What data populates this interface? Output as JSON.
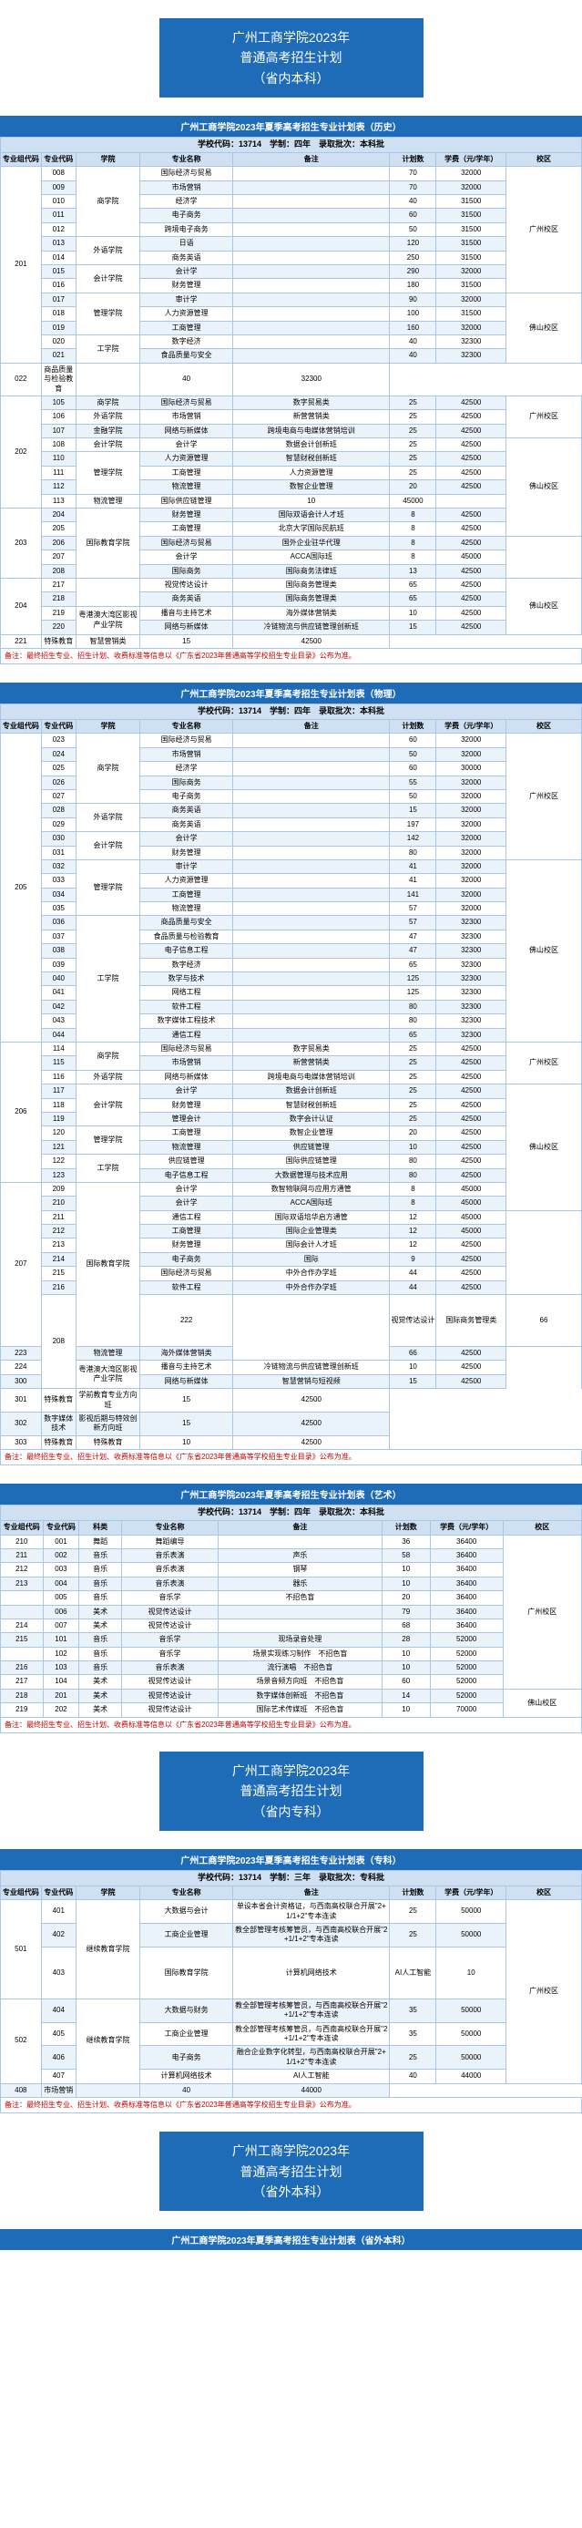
{
  "colors": {
    "banner_bg": "#1e6bb8",
    "banner_fg": "#ffffff",
    "header_bg": "#cfe0f2",
    "border": "#aac6e6",
    "row_odd": "#ffffff",
    "row_even": "#eaf2fa",
    "footnote_color": "#c00000"
  },
  "banner1": {
    "line1": "广州工商学院2023年",
    "line2": "普通高考招生计划",
    "line3": "（省内本科）"
  },
  "banner2": {
    "line1": "广州工商学院2023年",
    "line2": "普通高考招生计划",
    "line3": "（省内专科）"
  },
  "banner3": {
    "line1": "广州工商学院2023年",
    "line2": "普通高考招生计划",
    "line3": "（省外本科）"
  },
  "columns": {
    "group_code": "专业组代码",
    "major_code": "专业代码",
    "school": "学院",
    "major_name": "专业名称",
    "note": "备注",
    "plan": "计划数",
    "fee": "学费（元/学年）",
    "campus": "校区",
    "subject": "科类"
  },
  "table1": {
    "caption": "广州工商学院2023年夏季高考招生专业计划表（历史）",
    "subheader": "学校代码：13714　学制：四年　录取批次：本科批",
    "rows": [
      {
        "g": "201",
        "gspan": 14,
        "c": "008",
        "sch": "商学院",
        "sspan": 5,
        "name": "国际经济与贸易",
        "note": "",
        "plan": "70",
        "fee": "32000",
        "camp": "广州校区",
        "cspan": 9
      },
      {
        "c": "009",
        "name": "市场营销",
        "note": "",
        "plan": "70",
        "fee": "32000"
      },
      {
        "c": "010",
        "name": "经济学",
        "note": "",
        "plan": "40",
        "fee": "31500"
      },
      {
        "c": "011",
        "name": "电子商务",
        "note": "",
        "plan": "60",
        "fee": "31500"
      },
      {
        "c": "012",
        "name": "跨境电子商务",
        "note": "",
        "plan": "50",
        "fee": "31500"
      },
      {
        "c": "013",
        "sch": "外语学院",
        "sspan": 2,
        "name": "日语",
        "note": "",
        "plan": "120",
        "fee": "31500"
      },
      {
        "c": "014",
        "name": "商务英语",
        "note": "",
        "plan": "250",
        "fee": "31500"
      },
      {
        "c": "015",
        "sch": "会计学院",
        "sspan": 2,
        "name": "会计学",
        "note": "",
        "plan": "290",
        "fee": "32000"
      },
      {
        "c": "016",
        "name": "财务管理",
        "note": "",
        "plan": "180",
        "fee": "31500"
      },
      {
        "c": "017",
        "sch": "管理学院",
        "sspan": 3,
        "name": "审计学",
        "note": "",
        "plan": "90",
        "fee": "32000",
        "camp": "佛山校区",
        "cspan": 5
      },
      {
        "c": "018",
        "name": "人力资源管理",
        "note": "",
        "plan": "100",
        "fee": "31500"
      },
      {
        "c": "019",
        "name": "工商管理",
        "note": "",
        "plan": "160",
        "fee": "32000"
      },
      {
        "c": "020",
        "sch": "工学院",
        "sspan": 2,
        "name": "数字经济",
        "note": "",
        "plan": "40",
        "fee": "32300"
      },
      {
        "c": "021",
        "name": "食品质量与安全",
        "note": "",
        "plan": "40",
        "fee": "32300"
      },
      {
        "c": "022",
        "name": "商品质量与检验教育",
        "note": "",
        "plan": "40",
        "fee": "32300"
      },
      {
        "g": "202",
        "gspan": 8,
        "c": "105",
        "sch": "商学院",
        "sspan": 1,
        "name": "国际经济与贸易",
        "note": "数字贸易类",
        "plan": "25",
        "fee": "42500",
        "camp": "广州校区",
        "cspan": 3
      },
      {
        "c": "106",
        "sch": "外语学院",
        "sspan": 1,
        "name": "市场营销",
        "note": "新营营销类",
        "plan": "25",
        "fee": "42500"
      },
      {
        "c": "107",
        "sch": "金融学院",
        "sspan": 1,
        "name": "网络与新媒体",
        "note": "跨境电商与电媒体营销培训",
        "plan": "25",
        "fee": "42500"
      },
      {
        "c": "108",
        "sch": "会计学院",
        "sspan": 1,
        "name": "会计学",
        "note": "数据会计创新班",
        "plan": "25",
        "fee": "42500",
        "camp": "佛山校区",
        "cspan": 7
      },
      {
        "c": "110",
        "sch": "管理学院",
        "sspan": 3,
        "name": "人力资源管理",
        "note": "智慧财税创新班",
        "plan": "25",
        "fee": "42500"
      },
      {
        "c": "111",
        "name": "工商管理",
        "note": "人力资源管理",
        "plan": "25",
        "fee": "42500"
      },
      {
        "c": "112",
        "name": "物流管理",
        "note": "数智企业管理",
        "plan": "20",
        "fee": "42500"
      },
      {
        "c": "113",
        "name": "物流管理",
        "note": "国际供应链管理",
        "plan": "10",
        "fee": "45000"
      },
      {
        "g": "203",
        "gspan": 5,
        "c": "204",
        "sch": "国际教育学院",
        "sspan": 5,
        "name": "财务管理",
        "note": "国际双语会计人才班",
        "plan": "8",
        "fee": "42500",
        "camp": "广州校区",
        "cspan": 5
      },
      {
        "c": "205",
        "name": "工商管理",
        "note": "北京大学国际民航班",
        "plan": "8",
        "fee": "42500"
      },
      {
        "c": "206",
        "name": "国际经济与贸易",
        "note": "国外企业驻华代理",
        "plan": "8",
        "fee": "42500"
      },
      {
        "c": "207",
        "name": "会计学",
        "note": "ACCA国际班",
        "plan": "8",
        "fee": "45000"
      },
      {
        "c": "208",
        "name": "国际商务",
        "note": "国际商务法律班",
        "plan": "13",
        "fee": "42500"
      },
      {
        "g": "204",
        "gspan": 4,
        "c": "217",
        "sch": "",
        "sspan": 2,
        "name": "视觉传达设计",
        "note": "国际商务管理类",
        "plan": "65",
        "fee": "42500",
        "camp": "佛山校区",
        "cspan": 4
      },
      {
        "c": "218",
        "name": "商务英语",
        "note": "国际商务管理类",
        "plan": "65",
        "fee": "42500"
      },
      {
        "c": "219",
        "sch": "粤港澳大湾区影视产业学院",
        "sspan": 2,
        "name": "播音与主持艺术",
        "note": "海外媒体营销类",
        "plan": "10",
        "fee": "42500"
      },
      {
        "c": "220",
        "name": "网络与新媒体",
        "note": "冷链物流与供应链管理创新班",
        "plan": "15",
        "fee": "42500"
      },
      {
        "c": "221",
        "name": "特殊教育",
        "note": "智慧营销类",
        "plan": "15",
        "fee": "42500"
      }
    ],
    "footnote": "备注：最终招生专业、招生计划、收费标准等信息以《广东省2023年普通高等学校招生专业目录》公布为准。"
  },
  "table2": {
    "caption": "广州工商学院2023年夏季高考招生专业计划表（物理）",
    "subheader": "学校代码：13714　学制：四年　录取批次：本科批",
    "rows": [
      {
        "g": "205",
        "gspan": 22,
        "c": "023",
        "sch": "商学院",
        "sspan": 5,
        "name": "国际经济与贸易",
        "note": "",
        "plan": "60",
        "fee": "32000",
        "camp": "广州校区",
        "cspan": 9
      },
      {
        "c": "024",
        "name": "市场营销",
        "note": "",
        "plan": "50",
        "fee": "32000"
      },
      {
        "c": "025",
        "name": "经济学",
        "note": "",
        "plan": "60",
        "fee": "30000"
      },
      {
        "c": "026",
        "name": "国际商务",
        "note": "",
        "plan": "55",
        "fee": "32000"
      },
      {
        "c": "027",
        "name": "电子商务",
        "note": "",
        "plan": "50",
        "fee": "32000"
      },
      {
        "c": "028",
        "sch": "外语学院",
        "sspan": 2,
        "name": "商务英语",
        "note": "",
        "plan": "15",
        "fee": "32000"
      },
      {
        "c": "029",
        "name": "商务英语",
        "note": "",
        "plan": "197",
        "fee": "32000"
      },
      {
        "c": "030",
        "sch": "会计学院",
        "sspan": 2,
        "name": "会计学",
        "note": "",
        "plan": "142",
        "fee": "32000"
      },
      {
        "c": "031",
        "name": "财务管理",
        "note": "",
        "plan": "80",
        "fee": "32000"
      },
      {
        "c": "032",
        "sch": "管理学院",
        "sspan": 4,
        "name": "审计学",
        "note": "",
        "plan": "41",
        "fee": "32000",
        "camp": "佛山校区",
        "cspan": 13
      },
      {
        "c": "033",
        "name": "人力资源管理",
        "note": "",
        "plan": "41",
        "fee": "32000"
      },
      {
        "c": "034",
        "name": "工商管理",
        "note": "",
        "plan": "141",
        "fee": "32000"
      },
      {
        "c": "035",
        "name": "物流管理",
        "note": "",
        "plan": "57",
        "fee": "32000"
      },
      {
        "c": "036",
        "sch": "工学院",
        "sspan": 9,
        "name": "商品质量与安全",
        "note": "",
        "plan": "57",
        "fee": "32300"
      },
      {
        "c": "037",
        "name": "食品质量与检验教育",
        "note": "",
        "plan": "47",
        "fee": "32300"
      },
      {
        "c": "038",
        "name": "电子信息工程",
        "note": "",
        "plan": "47",
        "fee": "32300"
      },
      {
        "c": "039",
        "name": "数字经济",
        "note": "",
        "plan": "65",
        "fee": "32300"
      },
      {
        "c": "040",
        "name": "数学与技术",
        "note": "",
        "plan": "125",
        "fee": "32300"
      },
      {
        "c": "041",
        "name": "网络工程",
        "note": "",
        "plan": "125",
        "fee": "32300"
      },
      {
        "c": "042",
        "name": "软件工程",
        "note": "",
        "plan": "80",
        "fee": "32300"
      },
      {
        "c": "043",
        "name": "数字媒体工程技术",
        "note": "",
        "plan": "80",
        "fee": "32300"
      },
      {
        "c": "044",
        "name": "通信工程",
        "note": "",
        "plan": "65",
        "fee": "32300"
      },
      {
        "g": "206",
        "gspan": 10,
        "c": "114",
        "sch": "商学院",
        "sspan": 2,
        "name": "国际经济与贸易",
        "note": "数字贸易类",
        "plan": "25",
        "fee": "42500",
        "camp": "广州校区",
        "cspan": 3
      },
      {
        "c": "115",
        "name": "市场营销",
        "note": "新营营销类",
        "plan": "25",
        "fee": "42500"
      },
      {
        "c": "116",
        "sch": "外语学院",
        "sspan": 1,
        "name": "网络与新媒体",
        "note": "跨境电商与电媒体营销培训",
        "plan": "25",
        "fee": "42500"
      },
      {
        "c": "117",
        "sch": "会计学院",
        "sspan": 3,
        "name": "会计学",
        "note": "数据会计创新班",
        "plan": "25",
        "fee": "42500",
        "camp": "佛山校区",
        "cspan": 9
      },
      {
        "c": "118",
        "name": "财务管理",
        "note": "智慧财税创新班",
        "plan": "25",
        "fee": "42500"
      },
      {
        "c": "119",
        "name": "管理会计",
        "note": "数字会计认证",
        "plan": "25",
        "fee": "42500"
      },
      {
        "c": "120",
        "sch": "管理学院",
        "sspan": 2,
        "name": "工商管理",
        "note": "数智企业管理",
        "plan": "20",
        "fee": "42500"
      },
      {
        "c": "121",
        "name": "物流管理",
        "note": "供应链管理",
        "plan": "10",
        "fee": "42500"
      },
      {
        "c": "122",
        "sch": "工学院",
        "sspan": 2,
        "name": "供应链管理",
        "note": "国际供应链管理",
        "plan": "80",
        "fee": "42500"
      },
      {
        "c": "123",
        "name": "电子信息工程",
        "note": "大数据管理与技术应用",
        "plan": "80",
        "fee": "42500"
      },
      {
        "g": "207",
        "gspan": 9,
        "c": "209",
        "sch": "国际教育学院",
        "sspan": 9,
        "name": "会计学",
        "note": "数智物联网与应用方通管",
        "plan": "8",
        "fee": "45000",
        "camp": "广州校区",
        "cspan": 9
      },
      {
        "c": "210",
        "name": "会计学",
        "note": "ACCA国际班",
        "plan": "8",
        "fee": "45000"
      },
      {
        "c": "211",
        "name": "通信工程",
        "note": "国际双语培华启方通管",
        "plan": "12",
        "fee": "45000"
      },
      {
        "c": "212",
        "name": "工商管理",
        "note": "国际企业管理类",
        "plan": "12",
        "fee": "45000"
      },
      {
        "c": "213",
        "name": "财务管理",
        "note": "国际会计人才班",
        "plan": "12",
        "fee": "42500"
      },
      {
        "c": "214",
        "name": "电子商务",
        "note": "国际",
        "plan": "9",
        "fee": "42500"
      },
      {
        "c": "215",
        "name": "国际经济与贸易",
        "note": "中外合作办学班",
        "plan": "44",
        "fee": "42500"
      },
      {
        "c": "216",
        "name": "软件工程",
        "note": "中外合作办学班",
        "plan": "44",
        "fee": "42500"
      },
      {
        "g": "208",
        "gspan": 4,
        "c": "222",
        "sch": "",
        "sspan": 2,
        "name": "视觉传达设计",
        "note": "国际商务管理类",
        "plan": "66",
        "fee": "42500",
        "camp": "佛山校区",
        "cspan": 4
      },
      {
        "c": "223",
        "name": "物流管理",
        "note": "海外媒体营销类",
        "plan": "66",
        "fee": "42500"
      },
      {
        "c": "224",
        "sch": "粤港澳大湾区影视产业学院",
        "sspan": 2,
        "name": "播音与主持艺术",
        "note": "冷链物流与供应链管理创新班",
        "plan": "10",
        "fee": "42500"
      },
      {
        "c": "300",
        "name": "网络与新媒体",
        "note": "智慧营销与短视频",
        "plan": "15",
        "fee": "42500"
      },
      {
        "c": "301",
        "name": "特殊教育",
        "note": "学前教育专业方向班",
        "plan": "15",
        "fee": "42500"
      },
      {
        "c": "302",
        "name": "数字媒体技术",
        "note": "影视后期与特效创新方向班",
        "plan": "15",
        "fee": "42500"
      },
      {
        "c": "303",
        "name": "特殊教育",
        "note": "特殊教育",
        "plan": "10",
        "fee": "42500"
      }
    ],
    "footnote": "备注：最终招生专业、招生计划、收费标准等信息以《广东省2023年普通高等学校招生专业目录》公布为准。"
  },
  "table3": {
    "caption": "广州工商学院2023年夏季高考招生专业计划表（艺术）",
    "subheader": "学校代码：13714　学制：四年　录取批次：本科批",
    "columns": [
      "专业组代码",
      "专业代码",
      "科类",
      "专业名称",
      "备注",
      "计划数",
      "学费（元/学年）",
      "校区"
    ],
    "rows": [
      {
        "g": "210",
        "c": "001",
        "sub": "舞蹈",
        "name": "舞蹈编导",
        "note": "",
        "plan": "36",
        "fee": "36400",
        "camp": "广州校区",
        "cspan": 11
      },
      {
        "g": "211",
        "c": "002",
        "sub": "音乐",
        "name": "音乐表演",
        "note": "声乐",
        "plan": "58",
        "fee": "36400"
      },
      {
        "g": "212",
        "c": "003",
        "sub": "音乐",
        "name": "音乐表演",
        "note": "钢琴",
        "plan": "10",
        "fee": "36400"
      },
      {
        "g": "213",
        "c": "004",
        "sub": "音乐",
        "name": "音乐表演",
        "note": "器乐",
        "plan": "10",
        "fee": "36400"
      },
      {
        "g": "",
        "c": "005",
        "sub": "音乐",
        "name": "音乐学",
        "note": "不招色盲",
        "plan": "20",
        "fee": "36400"
      },
      {
        "g": "",
        "c": "006",
        "sub": "美术",
        "name": "视觉传达设计",
        "note": "",
        "plan": "79",
        "fee": "36400"
      },
      {
        "g": "214",
        "c": "007",
        "sub": "美术",
        "name": "视觉传达设计",
        "note": "",
        "plan": "68",
        "fee": "36400"
      },
      {
        "g": "215",
        "c": "101",
        "sub": "音乐",
        "name": "音乐学",
        "note": "现场录音处理",
        "plan": "28",
        "fee": "52000"
      },
      {
        "g": "",
        "c": "102",
        "sub": "音乐",
        "name": "音乐学",
        "note": "场景实现练习制作　不招色盲",
        "plan": "10",
        "fee": "52000"
      },
      {
        "g": "216",
        "c": "103",
        "sub": "音乐",
        "name": "音乐表演",
        "note": "流行演唱　不招色盲",
        "plan": "10",
        "fee": "52000"
      },
      {
        "g": "217",
        "c": "104",
        "sub": "美术",
        "name": "视觉传达设计",
        "note": "场景音频方向班　不招色盲",
        "plan": "60",
        "fee": "52000"
      },
      {
        "g": "218",
        "c": "201",
        "sub": "美术",
        "name": "视觉传达设计",
        "note": "数字媒体创新班　不招色盲",
        "plan": "14",
        "fee": "52000",
        "camp": "佛山校区",
        "cspan": 2
      },
      {
        "g": "219",
        "c": "202",
        "sub": "美术",
        "name": "视觉传达设计",
        "note": "国际艺术传媒班　不招色盲",
        "plan": "10",
        "fee": "70000"
      }
    ],
    "footnote": "备注：最终招生专业、招生计划、收费标准等信息以《广东省2023年普通高等学校招生专业目录》公布为准。"
  },
  "table4": {
    "caption": "广州工商学院2023年夏季高考招生专业计划表（专科）",
    "subheader": "学校代码：13714　学制：三年　录取批次：专科批",
    "rows": [
      {
        "g": "501",
        "gspan": 3,
        "c": "401",
        "sch": "继续教育学院",
        "sspan": 3,
        "name": "大数据与会计",
        "note": "单设本省会计资格证，与西南高校联合开展\"2+1/1+2\"专本连读",
        "plan": "25",
        "fee": "50000",
        "camp": "广州校区",
        "cspan": 7
      },
      {
        "c": "402",
        "name": "工商企业管理",
        "note": "教全部管理考核筹管员，与西南高校联合开展\"2+1/1+2\"专本连读",
        "plan": "25",
        "fee": "50000"
      },
      {
        "c": "403",
        "sch": "国际教育学院",
        "sspan": 1,
        "name": "计算机网络技术",
        "note": "AI人工智能",
        "plan": "10",
        "fee": "44000"
      },
      {
        "g": "502",
        "gspan": 4,
        "c": "404",
        "sch": "继续教育学院",
        "sspan": 4,
        "name": "大数据与财务",
        "note": "教全部管理考核筹管员，与西南高校联合开展\"2+1/1+2\"专本连读",
        "plan": "35",
        "fee": "50000"
      },
      {
        "c": "405",
        "name": "工商企业管理",
        "note": "教全部管理考核筹管员，与西南高校联合开展\"2+1/1+2\"专本连读",
        "plan": "35",
        "fee": "50000"
      },
      {
        "c": "406",
        "name": "电子商务",
        "note": "融合企业数字化转型，与西南高校联合开展\"2+1/1+2\"专本连读",
        "plan": "25",
        "fee": "50000"
      },
      {
        "c": "407",
        "name": "计算机网络技术",
        "note": "AI人工智能",
        "plan": "40",
        "fee": "44000"
      },
      {
        "c": "408",
        "name": "市场营销",
        "note": "",
        "plan": "40",
        "fee": "44000"
      }
    ],
    "footnote": "备注：最终招生专业、招生计划、收费标准等信息以《广东省2023年普通高等学校招生专业目录》公布为准。"
  },
  "table5": {
    "caption": "广州工商学院2023年夏季高考招生专业计划表（省外本科）"
  }
}
